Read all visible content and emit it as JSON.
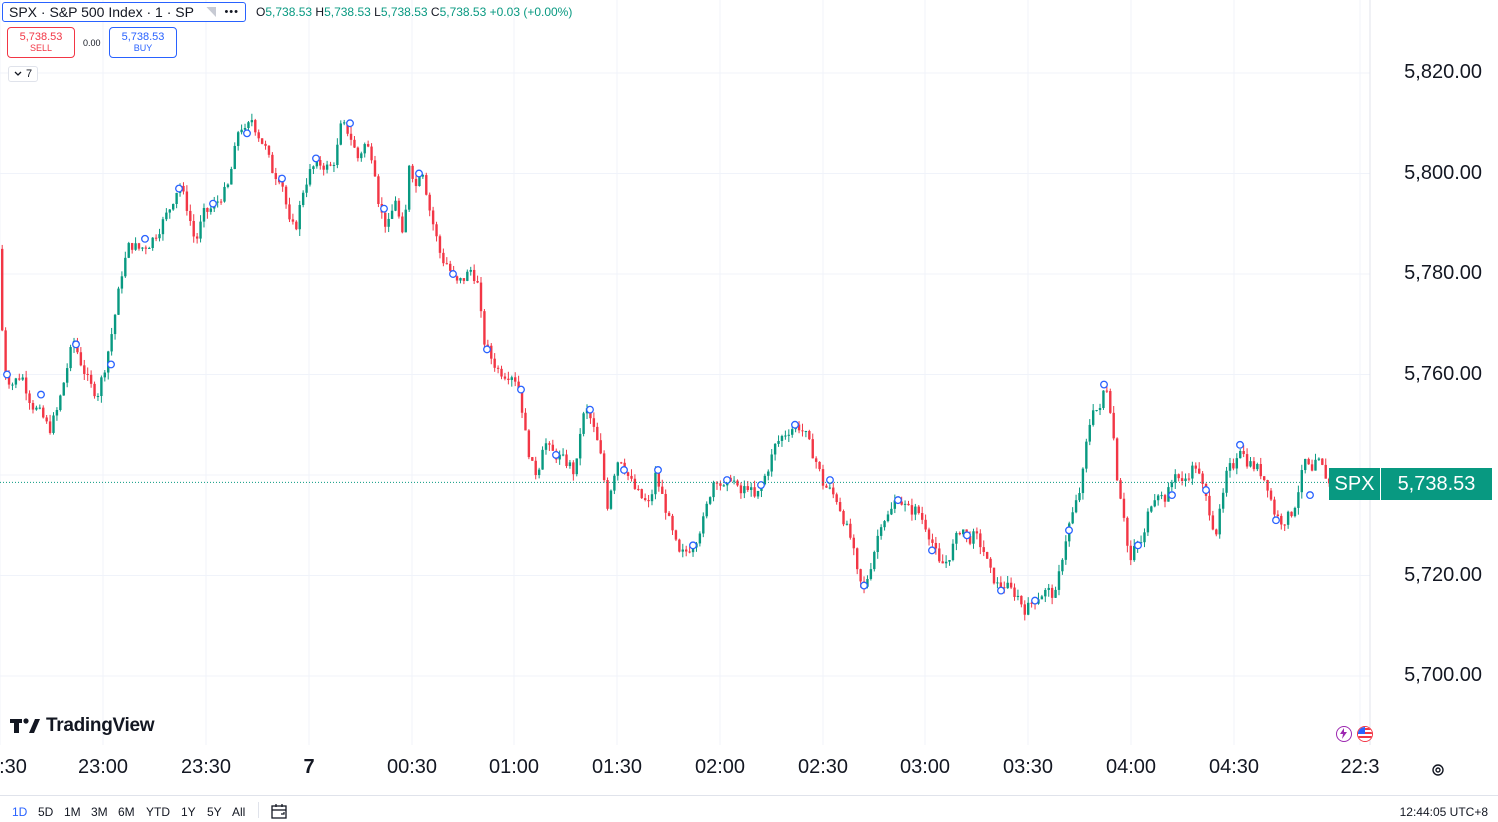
{
  "legend": {
    "symbol": "SPX · S&P 500 Index · 1 · SP",
    "more": "•••",
    "ohlc": {
      "o_label": "O",
      "o": "5,738.53",
      "h_label": "H",
      "h": "5,738.53",
      "l_label": "L",
      "l": "5,738.53",
      "c_label": "C",
      "c": "5,738.53",
      "change": "+0.03 (+0.00%)"
    }
  },
  "trade": {
    "sell_value": "5,738.53",
    "sell_label": "SELL",
    "spread": "0.00",
    "buy_value": "5,738.53",
    "buy_label": "BUY"
  },
  "indicators_collapse": {
    "count": "7"
  },
  "logo": {
    "text": "TradingView"
  },
  "price_tag": {
    "symbol": "SPX",
    "value": "5,738.53"
  },
  "bottom_bar": {
    "ranges": [
      "1D",
      "5D",
      "1M",
      "3M",
      "6M",
      "YTD",
      "1Y",
      "5Y",
      "All"
    ],
    "active_range": "1D",
    "clock": "12:44:05 UTC+8"
  },
  "colors": {
    "up": "#089981",
    "down": "#f23645",
    "accent": "#2962ff"
  },
  "icons": [
    "flag-icon",
    "more-icon",
    "chevron-down-icon",
    "tradingview-logo-icon",
    "calendar-icon",
    "lightning-icon",
    "us-flag-icon",
    "settings-icon"
  ],
  "chart_data": {
    "type": "candlestick",
    "symbol": "SPX",
    "interval": "1",
    "y_ticks": [
      "5,820.00",
      "5,800.00",
      "5,780.00",
      "5,760.00",
      "5,720.00",
      "5,700.00"
    ],
    "y_tick_values": [
      5820,
      5800,
      5780,
      5760,
      5720,
      5700
    ],
    "ylim": [
      5688,
      5832
    ],
    "x_ticks": [
      ":30",
      "23:00",
      "23:30",
      "7",
      "00:30",
      "01:00",
      "01:30",
      "02:00",
      "02:30",
      "03:00",
      "03:30",
      "04:00",
      "04:30",
      "22:3"
    ],
    "last_price": 5738.53,
    "grid": true,
    "path_keypoints": [
      [
        0,
        5785
      ],
      [
        4,
        5761
      ],
      [
        12,
        5758
      ],
      [
        22,
        5760
      ],
      [
        32,
        5754
      ],
      [
        42,
        5752
      ],
      [
        50,
        5749
      ],
      [
        58,
        5753
      ],
      [
        66,
        5760
      ],
      [
        74,
        5767
      ],
      [
        82,
        5762
      ],
      [
        90,
        5758
      ],
      [
        98,
        5756
      ],
      [
        106,
        5762
      ],
      [
        114,
        5770
      ],
      [
        122,
        5780
      ],
      [
        130,
        5786
      ],
      [
        140,
        5785
      ],
      [
        150,
        5786
      ],
      [
        160,
        5789
      ],
      [
        170,
        5793
      ],
      [
        180,
        5798
      ],
      [
        188,
        5793
      ],
      [
        196,
        5786
      ],
      [
        204,
        5792
      ],
      [
        212,
        5793
      ],
      [
        220,
        5795
      ],
      [
        228,
        5797
      ],
      [
        234,
        5803
      ],
      [
        240,
        5810
      ],
      [
        246,
        5808
      ],
      [
        252,
        5811
      ],
      [
        258,
        5808
      ],
      [
        266,
        5805
      ],
      [
        274,
        5800
      ],
      [
        282,
        5799
      ],
      [
        290,
        5790
      ],
      [
        296,
        5789
      ],
      [
        304,
        5797
      ],
      [
        312,
        5801
      ],
      [
        320,
        5802
      ],
      [
        330,
        5801
      ],
      [
        336,
        5803
      ],
      [
        342,
        5810
      ],
      [
        350,
        5808
      ],
      [
        358,
        5803
      ],
      [
        366,
        5806
      ],
      [
        374,
        5803
      ],
      [
        380,
        5793
      ],
      [
        388,
        5789
      ],
      [
        396,
        5795
      ],
      [
        404,
        5786
      ],
      [
        410,
        5803
      ],
      [
        416,
        5797
      ],
      [
        422,
        5802
      ],
      [
        430,
        5793
      ],
      [
        436,
        5788
      ],
      [
        442,
        5783
      ],
      [
        448,
        5782
      ],
      [
        456,
        5778
      ],
      [
        464,
        5779
      ],
      [
        472,
        5781
      ],
      [
        478,
        5778
      ],
      [
        484,
        5767
      ],
      [
        490,
        5764
      ],
      [
        498,
        5761
      ],
      [
        506,
        5760
      ],
      [
        514,
        5760
      ],
      [
        520,
        5757
      ],
      [
        526,
        5748
      ],
      [
        532,
        5742
      ],
      [
        538,
        5740
      ],
      [
        544,
        5747
      ],
      [
        550,
        5745
      ],
      [
        556,
        5744
      ],
      [
        564,
        5743
      ],
      [
        570,
        5742
      ],
      [
        576,
        5740
      ],
      [
        582,
        5751
      ],
      [
        588,
        5753
      ],
      [
        596,
        5748
      ],
      [
        602,
        5743
      ],
      [
        608,
        5734
      ],
      [
        614,
        5740
      ],
      [
        620,
        5744
      ],
      [
        628,
        5740
      ],
      [
        636,
        5737
      ],
      [
        644,
        5735
      ],
      [
        650,
        5734
      ],
      [
        656,
        5740
      ],
      [
        664,
        5735
      ],
      [
        672,
        5729
      ],
      [
        680,
        5724
      ],
      [
        688,
        5725
      ],
      [
        696,
        5727
      ],
      [
        704,
        5731
      ],
      [
        710,
        5736
      ],
      [
        716,
        5740
      ],
      [
        724,
        5737
      ],
      [
        732,
        5740
      ],
      [
        740,
        5736
      ],
      [
        748,
        5738
      ],
      [
        756,
        5735
      ],
      [
        762,
        5738
      ],
      [
        768,
        5741
      ],
      [
        776,
        5746
      ],
      [
        784,
        5748
      ],
      [
        790,
        5749
      ],
      [
        798,
        5750
      ],
      [
        806,
        5748
      ],
      [
        812,
        5745
      ],
      [
        818,
        5742
      ],
      [
        824,
        5738
      ],
      [
        830,
        5737
      ],
      [
        838,
        5735
      ],
      [
        846,
        5730
      ],
      [
        852,
        5727
      ],
      [
        858,
        5720
      ],
      [
        864,
        5717
      ],
      [
        870,
        5721
      ],
      [
        876,
        5726
      ],
      [
        882,
        5731
      ],
      [
        890,
        5732
      ],
      [
        898,
        5736
      ],
      [
        904,
        5734
      ],
      [
        910,
        5733
      ],
      [
        918,
        5733
      ],
      [
        926,
        5730
      ],
      [
        934,
        5726
      ],
      [
        940,
        5722
      ],
      [
        948,
        5723
      ],
      [
        956,
        5727
      ],
      [
        962,
        5730
      ],
      [
        968,
        5727
      ],
      [
        976,
        5728
      ],
      [
        984,
        5725
      ],
      [
        990,
        5721
      ],
      [
        998,
        5718
      ],
      [
        1006,
        5718
      ],
      [
        1012,
        5717
      ],
      [
        1018,
        5716
      ],
      [
        1026,
        5713
      ],
      [
        1034,
        5715
      ],
      [
        1040,
        5716
      ],
      [
        1048,
        5717
      ],
      [
        1056,
        5716
      ],
      [
        1062,
        5723
      ],
      [
        1068,
        5729
      ],
      [
        1076,
        5734
      ],
      [
        1082,
        5738
      ],
      [
        1088,
        5748
      ],
      [
        1094,
        5754
      ],
      [
        1100,
        5752
      ],
      [
        1106,
        5759
      ],
      [
        1112,
        5752
      ],
      [
        1118,
        5739
      ],
      [
        1124,
        5733
      ],
      [
        1130,
        5722
      ],
      [
        1136,
        5726
      ],
      [
        1144,
        5727
      ],
      [
        1150,
        5734
      ],
      [
        1158,
        5737
      ],
      [
        1164,
        5735
      ],
      [
        1170,
        5737
      ],
      [
        1176,
        5741
      ],
      [
        1182,
        5738
      ],
      [
        1188,
        5740
      ],
      [
        1196,
        5742
      ],
      [
        1204,
        5737
      ],
      [
        1210,
        5733
      ],
      [
        1216,
        5728
      ],
      [
        1222,
        5734
      ],
      [
        1228,
        5741
      ],
      [
        1234,
        5742
      ],
      [
        1240,
        5746
      ],
      [
        1246,
        5743
      ],
      [
        1252,
        5742
      ],
      [
        1260,
        5741
      ],
      [
        1268,
        5738
      ],
      [
        1274,
        5733
      ],
      [
        1280,
        5731
      ],
      [
        1286,
        5731
      ],
      [
        1294,
        5733
      ],
      [
        1300,
        5738
      ],
      [
        1306,
        5743
      ],
      [
        1312,
        5740
      ],
      [
        1318,
        5743
      ],
      [
        1324,
        5741
      ],
      [
        1330,
        5738
      ],
      [
        1334,
        5738.5
      ]
    ],
    "event_markers": [
      [
        7,
        5760
      ],
      [
        41,
        5756
      ],
      [
        76,
        5766
      ],
      [
        111,
        5762
      ],
      [
        145,
        5787
      ],
      [
        179,
        5797
      ],
      [
        213,
        5794
      ],
      [
        247,
        5808
      ],
      [
        282,
        5799
      ],
      [
        316,
        5803
      ],
      [
        350,
        5810
      ],
      [
        384,
        5793
      ],
      [
        419,
        5800
      ],
      [
        453,
        5780
      ],
      [
        487,
        5765
      ],
      [
        521,
        5757
      ],
      [
        556,
        5744
      ],
      [
        590,
        5753
      ],
      [
        624,
        5741
      ],
      [
        658,
        5741
      ],
      [
        693,
        5726
      ],
      [
        727,
        5739
      ],
      [
        761,
        5738
      ],
      [
        795,
        5750
      ],
      [
        830,
        5739
      ],
      [
        864,
        5718
      ],
      [
        898,
        5735
      ],
      [
        932,
        5725
      ],
      [
        967,
        5728
      ],
      [
        1001,
        5717
      ],
      [
        1035,
        5715
      ],
      [
        1069,
        5729
      ],
      [
        1104,
        5758
      ],
      [
        1138,
        5726
      ],
      [
        1172,
        5736
      ],
      [
        1206,
        5737
      ],
      [
        1240,
        5746
      ],
      [
        1276,
        5731
      ],
      [
        1310,
        5736
      ]
    ]
  }
}
